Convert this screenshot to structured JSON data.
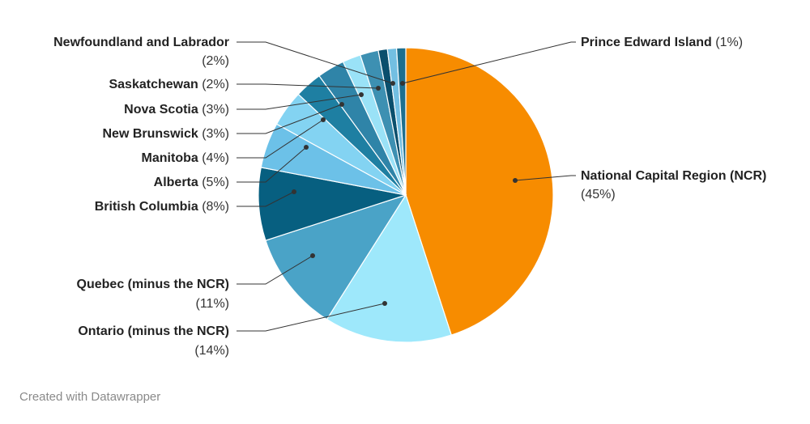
{
  "chart_data": {
    "type": "pie",
    "slices": [
      {
        "name": "National Capital Region (NCR)",
        "value": 45,
        "label": "(45%)",
        "color": "#f78c00"
      },
      {
        "name": "Ontario (minus the NCR)",
        "value": 14,
        "label": "(14%)",
        "color": "#9ee8fb"
      },
      {
        "name": "Quebec (minus the NCR)",
        "value": 11,
        "label": "(11%)",
        "color": "#4aa3c7"
      },
      {
        "name": "British Columbia",
        "value": 8,
        "label": "(8%)",
        "color": "#075f80"
      },
      {
        "name": "Alberta",
        "value": 5,
        "label": "(5%)",
        "color": "#6cc1e8"
      },
      {
        "name": "Manitoba",
        "value": 4,
        "label": "(4%)",
        "color": "#83d3f2"
      },
      {
        "name": "New Brunswick",
        "value": 3,
        "label": "(3%)",
        "color": "#1e7fa2"
      },
      {
        "name": "Nova Scotia",
        "value": 3,
        "label": "(3%)",
        "color": "#2f84a8"
      },
      {
        "name": "Saskatchewan",
        "value": 2,
        "label": "(2%)",
        "color": "#9ae2f7"
      },
      {
        "name": "Newfoundland and Labrador",
        "value": 2,
        "label": "(2%)",
        "color": "#3d90b2"
      },
      {
        "name": "",
        "value": 1,
        "label": "",
        "color": "#0a4f6d"
      },
      {
        "name": "",
        "value": 1,
        "label": "",
        "color": "#73bfe2"
      },
      {
        "name": "Prince Edward Island",
        "value": 1,
        "label": "(1%)",
        "color": "#1d6f8f"
      }
    ]
  },
  "footer": {
    "credit": "Created with Datawrapper"
  }
}
